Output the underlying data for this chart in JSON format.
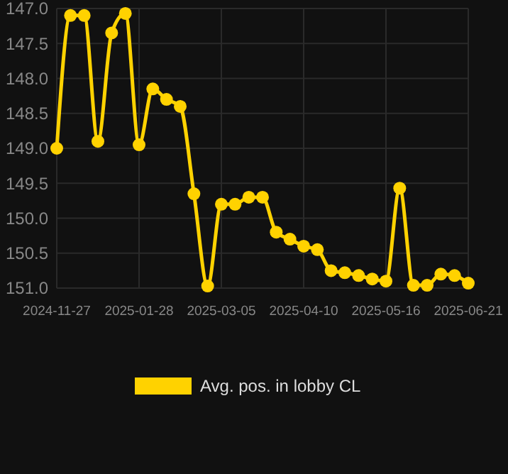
{
  "chart_data": {
    "type": "line",
    "categories": [
      "2024-11-27",
      null,
      null,
      null,
      null,
      null,
      "2025-01-28",
      null,
      null,
      null,
      null,
      null,
      "2025-03-05",
      null,
      null,
      null,
      null,
      null,
      "2025-04-10",
      null,
      null,
      null,
      null,
      null,
      "2025-05-16",
      null,
      null,
      null,
      null,
      null,
      "2025-06-21"
    ],
    "series": [
      {
        "name": "Avg. pos. in lobby CL",
        "color": "#ffd200",
        "values": [
          149.0,
          147.1,
          147.1,
          148.9,
          147.35,
          147.07,
          148.95,
          148.15,
          148.3,
          148.4,
          149.65,
          150.97,
          149.8,
          149.8,
          149.7,
          149.7,
          150.2,
          150.3,
          150.4,
          150.45,
          150.75,
          150.78,
          150.82,
          150.87,
          150.9,
          149.57,
          150.96,
          150.96,
          150.8,
          150.82,
          150.93
        ]
      }
    ],
    "ylim": [
      151.0,
      147.0
    ],
    "yticks": [
      {
        "value": 147,
        "label": "147.0"
      },
      {
        "value": 147.5,
        "label": "147.5"
      },
      {
        "value": 148,
        "label": "148.0"
      },
      {
        "value": 148.5,
        "label": "148.5"
      },
      {
        "value": 149,
        "label": "149.0"
      },
      {
        "value": 149.5,
        "label": "149.5"
      },
      {
        "value": 150,
        "label": "150.0"
      },
      {
        "value": 150.5,
        "label": "150.5"
      },
      {
        "value": 151,
        "label": "151.0"
      }
    ],
    "grid": true,
    "legend": "bottom",
    "marker": "circle",
    "line_style": "solid"
  }
}
